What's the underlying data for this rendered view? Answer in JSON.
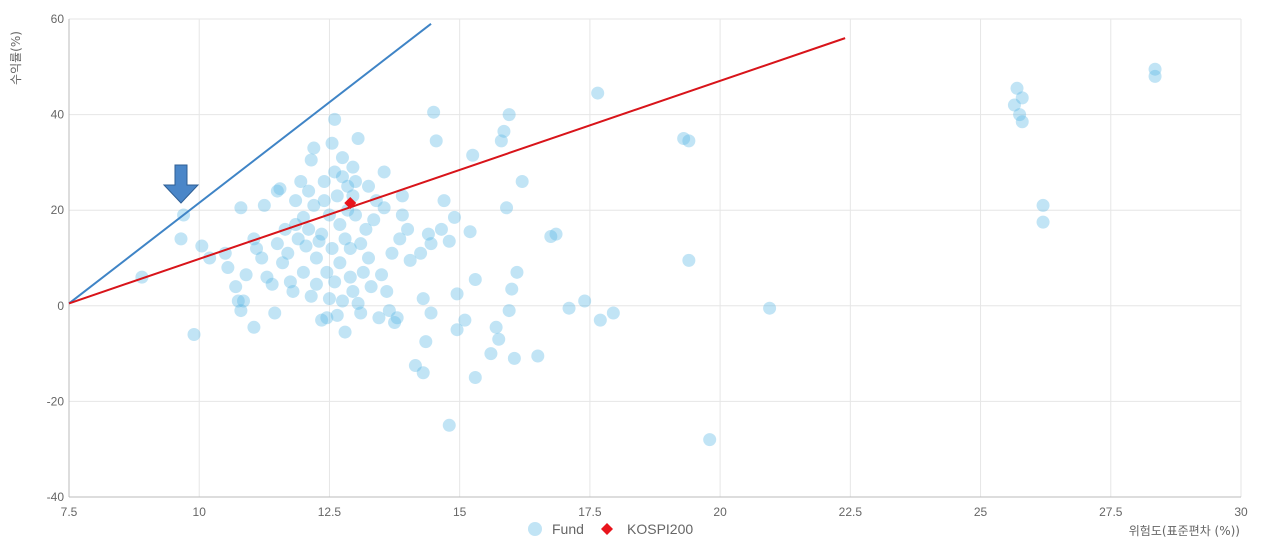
{
  "chart_data": {
    "type": "scatter",
    "xlabel": "위험도(표준편차 (%))",
    "ylabel": "수익률(%)",
    "xlim": [
      7.5,
      30
    ],
    "ylim": [
      -40,
      60
    ],
    "x_ticks": [
      "7.5",
      "10",
      "12.5",
      "15",
      "17.5",
      "20",
      "22.5",
      "25",
      "27.5",
      "30"
    ],
    "y_ticks": [
      "60",
      "40",
      "20",
      "0",
      "-20",
      "-40"
    ],
    "grid": true,
    "legend_position": "bottom",
    "colors": {
      "fund": "#5bb8e6",
      "kospi": "#e8141c",
      "blue_line": "#3f84c6",
      "red_line": "#d8141a",
      "arrow": "#4a86c8",
      "grid": "#e6e6e6",
      "axis": "#bbbbbb"
    },
    "series": [
      {
        "name": "Fund",
        "marker": "circle",
        "points": [
          [
            8.9,
            6
          ],
          [
            9.7,
            19
          ],
          [
            9.65,
            14
          ],
          [
            9.9,
            -6
          ],
          [
            10.05,
            12.5
          ],
          [
            10.2,
            10
          ],
          [
            10.5,
            11
          ],
          [
            10.55,
            8
          ],
          [
            10.7,
            4
          ],
          [
            10.75,
            1
          ],
          [
            10.8,
            20.5
          ],
          [
            10.85,
            1
          ],
          [
            10.8,
            -1
          ],
          [
            10.9,
            6.5
          ],
          [
            11.05,
            14
          ],
          [
            11.05,
            -4.5
          ],
          [
            11.1,
            12
          ],
          [
            11.2,
            10
          ],
          [
            11.25,
            21
          ],
          [
            11.3,
            6
          ],
          [
            11.4,
            4.5
          ],
          [
            11.45,
            -1.5
          ],
          [
            11.5,
            13
          ],
          [
            11.5,
            24
          ],
          [
            11.55,
            24.5
          ],
          [
            11.6,
            9
          ],
          [
            11.65,
            16
          ],
          [
            11.7,
            11
          ],
          [
            11.75,
            5
          ],
          [
            11.8,
            3
          ],
          [
            11.85,
            17
          ],
          [
            11.85,
            22
          ],
          [
            11.9,
            14
          ],
          [
            11.95,
            26
          ],
          [
            12,
            18.5
          ],
          [
            12,
            7
          ],
          [
            12.05,
            12.5
          ],
          [
            12.1,
            24
          ],
          [
            12.1,
            16
          ],
          [
            12.15,
            30.5
          ],
          [
            12.15,
            2
          ],
          [
            12.2,
            21
          ],
          [
            12.2,
            33
          ],
          [
            12.25,
            4.5
          ],
          [
            12.25,
            10
          ],
          [
            12.3,
            13.5
          ],
          [
            12.35,
            15
          ],
          [
            12.35,
            -3
          ],
          [
            12.4,
            22
          ],
          [
            12.4,
            26
          ],
          [
            12.45,
            -2.5
          ],
          [
            12.45,
            7
          ],
          [
            12.5,
            1.5
          ],
          [
            12.5,
            19
          ],
          [
            12.55,
            12
          ],
          [
            12.55,
            34
          ],
          [
            12.6,
            39
          ],
          [
            12.6,
            28
          ],
          [
            12.6,
            5
          ],
          [
            12.65,
            -2
          ],
          [
            12.65,
            23
          ],
          [
            12.7,
            17
          ],
          [
            12.7,
            9
          ],
          [
            12.75,
            1
          ],
          [
            12.75,
            31
          ],
          [
            12.75,
            27
          ],
          [
            12.8,
            14
          ],
          [
            12.8,
            -5.5
          ],
          [
            12.85,
            20
          ],
          [
            12.85,
            25
          ],
          [
            12.9,
            6
          ],
          [
            12.9,
            12
          ],
          [
            12.95,
            29
          ],
          [
            12.95,
            23
          ],
          [
            12.95,
            3
          ],
          [
            13,
            19
          ],
          [
            13,
            26
          ],
          [
            13.05,
            0.5
          ],
          [
            13.05,
            35
          ],
          [
            13.1,
            13
          ],
          [
            13.1,
            -1.5
          ],
          [
            13.15,
            7
          ],
          [
            13.2,
            16
          ],
          [
            13.25,
            25
          ],
          [
            13.25,
            10
          ],
          [
            13.3,
            4
          ],
          [
            13.35,
            18
          ],
          [
            13.4,
            22
          ],
          [
            13.45,
            -2.5
          ],
          [
            13.5,
            6.5
          ],
          [
            13.55,
            28
          ],
          [
            13.55,
            20.5
          ],
          [
            13.6,
            3
          ],
          [
            13.65,
            -1
          ],
          [
            13.7,
            11
          ],
          [
            13.75,
            -3.5
          ],
          [
            13.8,
            -2.5
          ],
          [
            13.85,
            14
          ],
          [
            13.9,
            23
          ],
          [
            13.9,
            19
          ],
          [
            14,
            16
          ],
          [
            14.05,
            9.5
          ],
          [
            14.15,
            -12.5
          ],
          [
            14.25,
            11
          ],
          [
            14.3,
            -14
          ],
          [
            14.3,
            1.5
          ],
          [
            14.35,
            -7.5
          ],
          [
            14.4,
            15
          ],
          [
            14.45,
            -1.5
          ],
          [
            14.45,
            13
          ],
          [
            14.5,
            40.5
          ],
          [
            14.55,
            34.5
          ],
          [
            14.65,
            16
          ],
          [
            14.7,
            22
          ],
          [
            14.8,
            13.5
          ],
          [
            14.8,
            -25
          ],
          [
            14.9,
            18.5
          ],
          [
            14.95,
            2.5
          ],
          [
            14.95,
            -5
          ],
          [
            15.1,
            -3
          ],
          [
            15.2,
            15.5
          ],
          [
            15.25,
            31.5
          ],
          [
            15.3,
            5.5
          ],
          [
            15.3,
            -15
          ],
          [
            15.6,
            -10
          ],
          [
            15.7,
            -4.5
          ],
          [
            15.75,
            -7
          ],
          [
            15.8,
            34.5
          ],
          [
            15.85,
            36.5
          ],
          [
            15.9,
            20.5
          ],
          [
            15.95,
            40
          ],
          [
            15.95,
            -1
          ],
          [
            16,
            3.5
          ],
          [
            16.05,
            -11
          ],
          [
            16.1,
            7
          ],
          [
            16.2,
            26
          ],
          [
            16.5,
            -10.5
          ],
          [
            16.75,
            14.5
          ],
          [
            16.85,
            15
          ],
          [
            17.1,
            -0.5
          ],
          [
            17.4,
            1
          ],
          [
            17.65,
            44.5
          ],
          [
            17.7,
            -3
          ],
          [
            17.95,
            -1.5
          ],
          [
            19.3,
            35
          ],
          [
            19.4,
            34.5
          ],
          [
            19.4,
            9.5
          ],
          [
            19.8,
            -28
          ],
          [
            20.95,
            -0.5
          ],
          [
            25.65,
            42
          ],
          [
            25.7,
            45.5
          ],
          [
            25.75,
            40
          ],
          [
            25.8,
            43.5
          ],
          [
            25.8,
            38.5
          ],
          [
            26.2,
            21
          ],
          [
            26.2,
            17.5
          ],
          [
            28.35,
            49.5
          ],
          [
            28.35,
            48
          ]
        ]
      },
      {
        "name": "KOSPI200",
        "marker": "diamond",
        "points": [
          [
            12.9,
            21.5
          ]
        ]
      }
    ],
    "lines": [
      {
        "color": "blue_line",
        "from": [
          7.5,
          0.5
        ],
        "to": [
          14.45,
          59
        ]
      },
      {
        "color": "red_line",
        "from": [
          7.5,
          0.5
        ],
        "to": [
          22.4,
          56
        ]
      }
    ],
    "annotations": [
      {
        "type": "arrow",
        "icon": "down-arrow-icon",
        "at": [
          9.65,
          21.5
        ]
      }
    ]
  }
}
